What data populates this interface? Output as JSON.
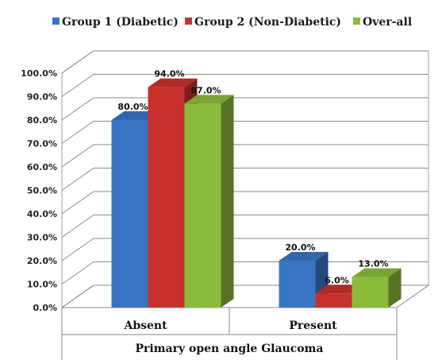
{
  "chart_data": {
    "type": "bar",
    "categories": [
      "Absent",
      "Present"
    ],
    "series": [
      {
        "name": "Group 1 (Diabetic)",
        "values": [
          80.0,
          20.0
        ],
        "labels": [
          "80.0%",
          "20.0%"
        ],
        "color": "#3a75c4"
      },
      {
        "name": "Group 2 (Non-Diabetic)",
        "values": [
          94.0,
          6.0
        ],
        "labels": [
          "94.0%",
          "6.0%"
        ],
        "color": "#c8302e"
      },
      {
        "name": "Over-all",
        "values": [
          87.0,
          13.0
        ],
        "labels": [
          "87.0%",
          "13.0%"
        ],
        "color": "#8bbb3a"
      }
    ],
    "y_ticks": [
      "0.0%",
      "10.0%",
      "20.0%",
      "30.0%",
      "40.0%",
      "50.0%",
      "60.0%",
      "70.0%",
      "80.0%",
      "90.0%",
      "100.0%"
    ],
    "ylim": [
      0,
      100
    ],
    "xlabel": "Primary open angle Glaucoma",
    "ylabel": "",
    "title": "",
    "legend_position": "top",
    "grid": true,
    "style": "3d"
  }
}
